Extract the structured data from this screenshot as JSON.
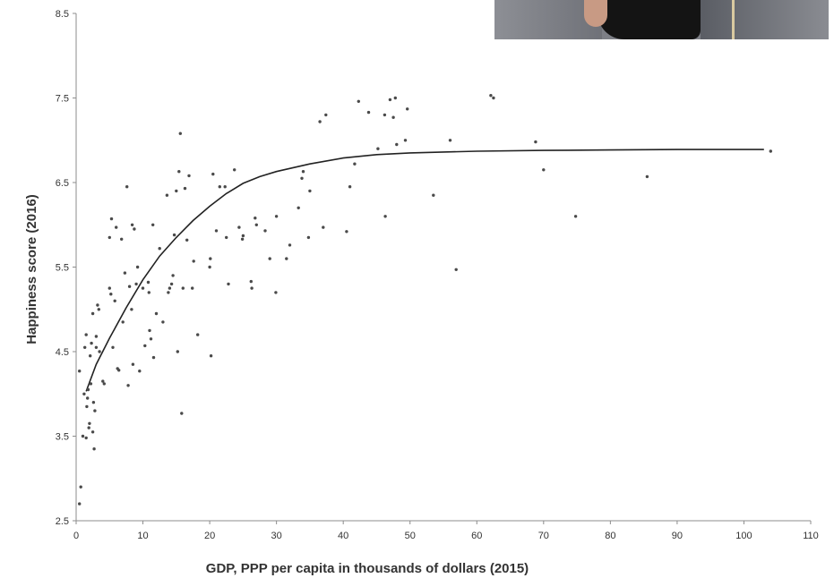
{
  "photo": {
    "description_icon": "person-photo"
  },
  "chart_data": {
    "type": "scatter",
    "title": "",
    "xlabel": "GDP, PPP per capita in thousands of dollars (2015)",
    "ylabel": "Happiness score (2016)",
    "xlim": [
      0,
      110
    ],
    "ylim": [
      2.5,
      8.5
    ],
    "x_ticks": [
      "0",
      "10",
      "20",
      "30",
      "40",
      "50",
      "60",
      "70",
      "80",
      "90",
      "100",
      "110"
    ],
    "y_ticks": [
      "2.5",
      "3.5",
      "4.5",
      "5.5",
      "6.5",
      "7.5",
      "8.5"
    ],
    "grid": false,
    "point_color": "#4a4a4a",
    "trend_color": "#222222",
    "trend_line": {
      "x": [
        1.5,
        3,
        5,
        7.5,
        10,
        12.5,
        15,
        17.5,
        20,
        22.5,
        25,
        27.5,
        30,
        35,
        40,
        45,
        50,
        60,
        70,
        80,
        90,
        100,
        103
      ],
      "y": [
        4.03,
        4.35,
        4.66,
        5.02,
        5.35,
        5.63,
        5.85,
        6.05,
        6.22,
        6.37,
        6.49,
        6.57,
        6.63,
        6.72,
        6.79,
        6.83,
        6.85,
        6.87,
        6.88,
        6.885,
        6.89,
        6.89,
        6.89
      ]
    },
    "points": [
      {
        "x": 0.5,
        "y": 2.7
      },
      {
        "x": 0.7,
        "y": 2.9
      },
      {
        "x": 0.5,
        "y": 4.27
      },
      {
        "x": 1.0,
        "y": 3.5
      },
      {
        "x": 1.2,
        "y": 4.0
      },
      {
        "x": 1.3,
        "y": 4.55
      },
      {
        "x": 1.5,
        "y": 3.48
      },
      {
        "x": 1.6,
        "y": 3.85
      },
      {
        "x": 1.8,
        "y": 4.05
      },
      {
        "x": 1.5,
        "y": 4.7
      },
      {
        "x": 1.9,
        "y": 3.6
      },
      {
        "x": 2.0,
        "y": 3.65
      },
      {
        "x": 2.1,
        "y": 4.45
      },
      {
        "x": 2.2,
        "y": 4.12
      },
      {
        "x": 1.7,
        "y": 3.95
      },
      {
        "x": 2.3,
        "y": 4.6
      },
      {
        "x": 2.5,
        "y": 3.55
      },
      {
        "x": 2.5,
        "y": 4.95
      },
      {
        "x": 2.7,
        "y": 3.35
      },
      {
        "x": 2.8,
        "y": 3.8
      },
      {
        "x": 3.0,
        "y": 4.68
      },
      {
        "x": 3.2,
        "y": 5.05
      },
      {
        "x": 3.0,
        "y": 4.55
      },
      {
        "x": 2.6,
        "y": 3.9
      },
      {
        "x": 3.4,
        "y": 5.0
      },
      {
        "x": 3.5,
        "y": 4.5
      },
      {
        "x": 4.0,
        "y": 4.15
      },
      {
        "x": 4.2,
        "y": 4.12
      },
      {
        "x": 5.0,
        "y": 5.25
      },
      {
        "x": 5.0,
        "y": 5.85
      },
      {
        "x": 5.2,
        "y": 5.18
      },
      {
        "x": 5.3,
        "y": 6.07
      },
      {
        "x": 5.5,
        "y": 4.55
      },
      {
        "x": 5.8,
        "y": 5.1
      },
      {
        "x": 6.0,
        "y": 5.97
      },
      {
        "x": 6.2,
        "y": 4.3
      },
      {
        "x": 6.4,
        "y": 4.28
      },
      {
        "x": 6.8,
        "y": 5.83
      },
      {
        "x": 7.0,
        "y": 4.85
      },
      {
        "x": 7.3,
        "y": 5.43
      },
      {
        "x": 7.6,
        "y": 6.45
      },
      {
        "x": 7.8,
        "y": 4.1
      },
      {
        "x": 8.0,
        "y": 5.27
      },
      {
        "x": 8.3,
        "y": 5.0
      },
      {
        "x": 8.4,
        "y": 6.0
      },
      {
        "x": 8.5,
        "y": 4.35
      },
      {
        "x": 8.7,
        "y": 5.95
      },
      {
        "x": 9.0,
        "y": 5.3
      },
      {
        "x": 9.2,
        "y": 5.5
      },
      {
        "x": 9.5,
        "y": 4.27
      },
      {
        "x": 10.0,
        "y": 5.25
      },
      {
        "x": 10.3,
        "y": 4.57
      },
      {
        "x": 10.8,
        "y": 5.32
      },
      {
        "x": 10.9,
        "y": 5.2
      },
      {
        "x": 11.0,
        "y": 4.75
      },
      {
        "x": 11.2,
        "y": 4.65
      },
      {
        "x": 11.5,
        "y": 6.0
      },
      {
        "x": 11.6,
        "y": 4.43
      },
      {
        "x": 12.0,
        "y": 4.95
      },
      {
        "x": 12.5,
        "y": 5.72
      },
      {
        "x": 13.0,
        "y": 4.85
      },
      {
        "x": 13.6,
        "y": 6.35
      },
      {
        "x": 13.8,
        "y": 5.2
      },
      {
        "x": 14.0,
        "y": 5.25
      },
      {
        "x": 14.3,
        "y": 5.3
      },
      {
        "x": 14.5,
        "y": 5.4
      },
      {
        "x": 14.7,
        "y": 5.88
      },
      {
        "x": 15.0,
        "y": 6.4
      },
      {
        "x": 15.2,
        "y": 4.5
      },
      {
        "x": 15.4,
        "y": 6.63
      },
      {
        "x": 15.6,
        "y": 7.08
      },
      {
        "x": 15.8,
        "y": 3.77
      },
      {
        "x": 16.0,
        "y": 5.25
      },
      {
        "x": 16.3,
        "y": 6.43
      },
      {
        "x": 16.6,
        "y": 5.82
      },
      {
        "x": 16.9,
        "y": 6.58
      },
      {
        "x": 17.4,
        "y": 5.25
      },
      {
        "x": 17.6,
        "y": 5.57
      },
      {
        "x": 18.2,
        "y": 4.7
      },
      {
        "x": 20.0,
        "y": 5.5
      },
      {
        "x": 20.1,
        "y": 5.6
      },
      {
        "x": 20.2,
        "y": 4.45
      },
      {
        "x": 20.5,
        "y": 6.6
      },
      {
        "x": 21.0,
        "y": 5.93
      },
      {
        "x": 21.5,
        "y": 6.45
      },
      {
        "x": 22.3,
        "y": 6.45
      },
      {
        "x": 22.5,
        "y": 5.85
      },
      {
        "x": 22.8,
        "y": 5.3
      },
      {
        "x": 23.7,
        "y": 6.65
      },
      {
        "x": 24.4,
        "y": 5.97
      },
      {
        "x": 24.9,
        "y": 5.83
      },
      {
        "x": 25.0,
        "y": 5.87
      },
      {
        "x": 26.2,
        "y": 5.33
      },
      {
        "x": 26.3,
        "y": 5.25
      },
      {
        "x": 26.8,
        "y": 6.08
      },
      {
        "x": 27.0,
        "y": 6.0
      },
      {
        "x": 28.3,
        "y": 5.93
      },
      {
        "x": 29.0,
        "y": 5.6
      },
      {
        "x": 29.9,
        "y": 5.2
      },
      {
        "x": 30.0,
        "y": 6.1
      },
      {
        "x": 31.5,
        "y": 5.6
      },
      {
        "x": 32.0,
        "y": 5.76
      },
      {
        "x": 33.3,
        "y": 6.2
      },
      {
        "x": 33.8,
        "y": 6.55
      },
      {
        "x": 34.0,
        "y": 6.63
      },
      {
        "x": 34.8,
        "y": 5.85
      },
      {
        "x": 35.0,
        "y": 6.4
      },
      {
        "x": 36.5,
        "y": 7.22
      },
      {
        "x": 37.0,
        "y": 5.97
      },
      {
        "x": 37.4,
        "y": 7.3
      },
      {
        "x": 40.5,
        "y": 5.92
      },
      {
        "x": 41.0,
        "y": 6.45
      },
      {
        "x": 41.7,
        "y": 6.72
      },
      {
        "x": 42.3,
        "y": 7.46
      },
      {
        "x": 43.8,
        "y": 7.33
      },
      {
        "x": 45.2,
        "y": 6.9
      },
      {
        "x": 46.2,
        "y": 7.3
      },
      {
        "x": 46.3,
        "y": 6.1
      },
      {
        "x": 47.0,
        "y": 7.48
      },
      {
        "x": 47.5,
        "y": 7.27
      },
      {
        "x": 47.8,
        "y": 7.5
      },
      {
        "x": 48.0,
        "y": 6.95
      },
      {
        "x": 49.3,
        "y": 7.0
      },
      {
        "x": 49.6,
        "y": 7.37
      },
      {
        "x": 53.5,
        "y": 6.35
      },
      {
        "x": 56.0,
        "y": 7.0
      },
      {
        "x": 56.9,
        "y": 5.47
      },
      {
        "x": 62.1,
        "y": 7.53
      },
      {
        "x": 62.5,
        "y": 7.5
      },
      {
        "x": 68.8,
        "y": 6.98
      },
      {
        "x": 70.0,
        "y": 6.65
      },
      {
        "x": 74.8,
        "y": 6.1
      },
      {
        "x": 85.5,
        "y": 6.57
      },
      {
        "x": 104.0,
        "y": 6.87
      }
    ]
  }
}
